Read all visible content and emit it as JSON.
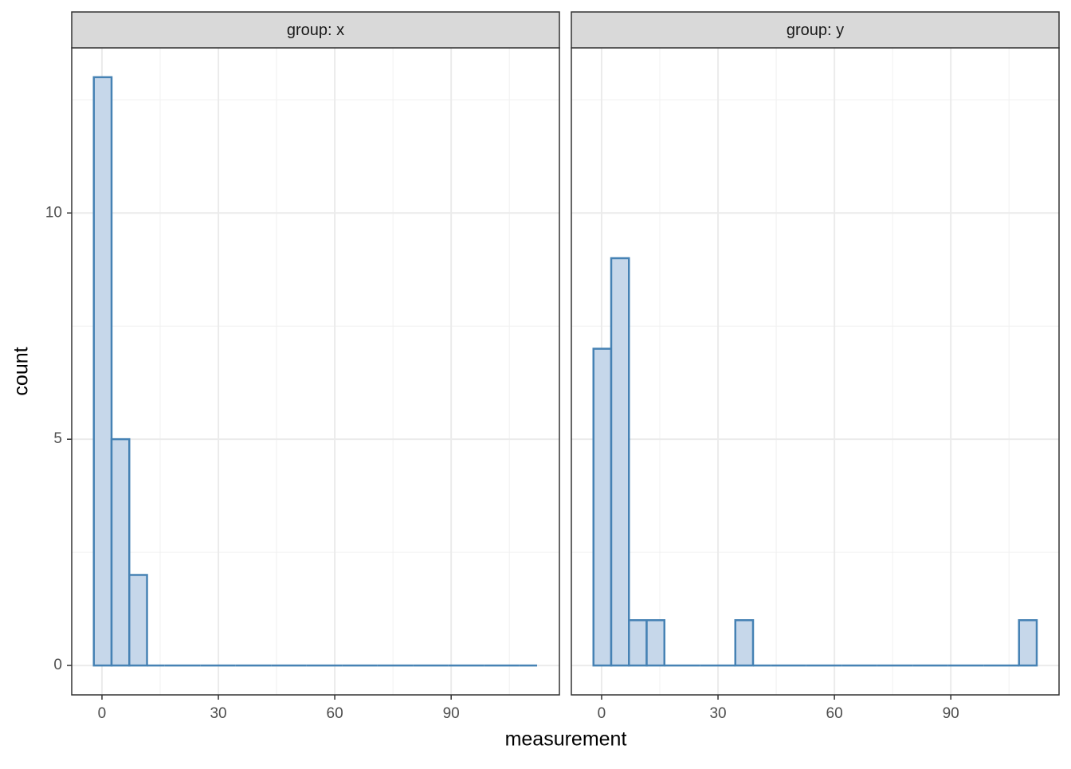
{
  "chart_data": [
    {
      "type": "histogram",
      "title": "group: x",
      "bins": [
        -2.1,
        2.47,
        7.04,
        11.61,
        16.18,
        20.75,
        25.32,
        29.89,
        34.46,
        39.03,
        43.6,
        48.17,
        52.74,
        57.31,
        61.88,
        66.45,
        71.02,
        75.59,
        80.16,
        84.73,
        89.3,
        93.87,
        98.44,
        103.01,
        107.58,
        112.15
      ],
      "counts": [
        13,
        5,
        2,
        0,
        0,
        0,
        0,
        0,
        0,
        0,
        0,
        0,
        0,
        0,
        0,
        0,
        0,
        0,
        0,
        0,
        0,
        0,
        0,
        0,
        0
      ],
      "color": "#4682b4",
      "fill": "#c6d7ea",
      "xlim": [
        -7.8,
        117.9
      ],
      "xticks": [
        0,
        30,
        60,
        90
      ],
      "xminorticks": [
        15,
        45,
        75,
        105
      ],
      "ylim": [
        -0.65,
        13.65
      ],
      "yticks": [
        0,
        5,
        10
      ],
      "yminorticks": [
        2.5,
        7.5,
        12.5
      ],
      "grid": true
    },
    {
      "type": "histogram",
      "title": "group: y",
      "bins": [
        -2.1,
        2.47,
        7.04,
        11.61,
        16.18,
        20.75,
        25.32,
        29.89,
        34.46,
        39.03,
        43.6,
        48.17,
        52.74,
        57.31,
        61.88,
        66.45,
        71.02,
        75.59,
        80.16,
        84.73,
        89.3,
        93.87,
        98.44,
        103.01,
        107.58,
        112.15
      ],
      "counts": [
        7,
        9,
        1,
        1,
        0,
        0,
        0,
        0,
        1,
        0,
        0,
        0,
        0,
        0,
        0,
        0,
        0,
        0,
        0,
        0,
        0,
        0,
        0,
        0,
        1
      ],
      "color": "#4682b4",
      "fill": "#c6d7ea",
      "xlim": [
        -7.8,
        117.9
      ],
      "xticks": [
        0,
        30,
        60,
        90
      ],
      "xminorticks": [
        15,
        45,
        75,
        105
      ],
      "ylim": [
        -0.65,
        13.65
      ],
      "yticks": [
        0,
        5,
        10
      ],
      "yminorticks": [
        2.5,
        7.5,
        12.5
      ],
      "grid": true
    }
  ],
  "xlabel": "measurement",
  "ylabel": "count"
}
